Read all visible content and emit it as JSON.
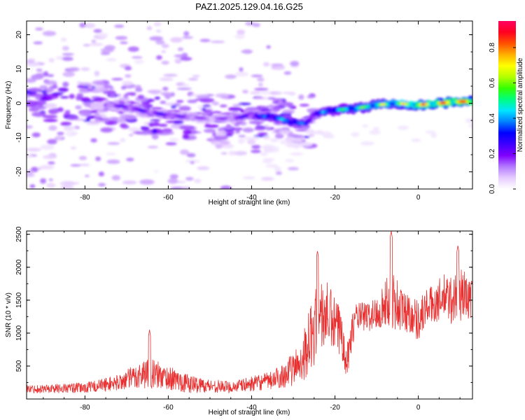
{
  "title": "PAZ1.2025.129.04.16.G25",
  "chart_data": [
    {
      "type": "heatmap",
      "xlabel": "Height of straight line (km)",
      "ylabel": "Frequency (Hz)",
      "xlim": [
        -94,
        13
      ],
      "ylim": [
        -25,
        24
      ],
      "xticks": [
        -80,
        -60,
        -40,
        -20,
        0
      ],
      "yticks": [
        -20,
        -10,
        0,
        10,
        20
      ],
      "colorbar": {
        "label": "Normalized spectral amplitude",
        "range": [
          0.0,
          0.95
        ],
        "ticks": [
          "0.0",
          "0.2",
          "0.4",
          "0.6",
          "0.8"
        ],
        "colormap": [
          "#ffffff",
          "#e6ccff",
          "#b37aff",
          "#8000ff",
          "#3f00ff",
          "#0000ff",
          "#0080ff",
          "#00e5ff",
          "#00ff80",
          "#33ff00",
          "#b3ff00",
          "#ffff00",
          "#ffb000",
          "#ff5000",
          "#ff0020",
          "#ff0060"
        ]
      },
      "ridge": {
        "x": [
          -75,
          -70,
          -65,
          -60,
          -55,
          -50,
          -45,
          -40,
          -35,
          -30,
          -27,
          -25,
          -20,
          -15,
          -10,
          -5,
          0,
          5,
          10,
          13
        ],
        "frequency": [
          -0.5,
          -1,
          -2.5,
          -3.5,
          -4,
          -4.5,
          -4.5,
          -3.5,
          -4,
          -5.5,
          -6,
          -3,
          -2,
          -1.5,
          -0.5,
          0,
          -0.5,
          0,
          0.5,
          0.5
        ],
        "amplitude": [
          0.2,
          0.25,
          0.25,
          0.25,
          0.2,
          0.15,
          0.2,
          0.3,
          0.45,
          0.45,
          0.35,
          0.35,
          0.5,
          0.6,
          0.65,
          0.7,
          0.8,
          0.85,
          0.9,
          0.9
        ]
      },
      "noise_region_x": [
        -94,
        -25
      ]
    },
    {
      "type": "line",
      "xlabel": "Height of straight line (km)",
      "ylabel": "SNR (10 * v/v)",
      "xlim": [
        -94,
        13
      ],
      "ylim": [
        0,
        2550
      ],
      "xticks": [
        -80,
        -60,
        -40,
        -20,
        0
      ],
      "yticks": [
        500,
        1000,
        1500,
        2000,
        2500
      ],
      "color": "#e83030",
      "envelope": {
        "x": [
          -94,
          -80,
          -72,
          -65,
          -60,
          -55,
          -50,
          -45,
          -40,
          -35,
          -30,
          -28,
          -26,
          -24,
          -22,
          -20,
          -18,
          -17,
          -16,
          -15,
          -12,
          -10,
          -8,
          -6,
          -4,
          -2,
          0,
          2,
          4,
          6,
          8,
          10,
          12,
          13
        ],
        "mean": [
          150,
          170,
          250,
          400,
          320,
          230,
          200,
          180,
          230,
          280,
          450,
          600,
          900,
          1200,
          1300,
          1100,
          950,
          600,
          1000,
          1250,
          1250,
          1300,
          1450,
          1500,
          1350,
          1300,
          1200,
          1400,
          1450,
          1550,
          1500,
          1600,
          1550,
          1400
        ],
        "spread": [
          60,
          80,
          120,
          240,
          180,
          140,
          100,
          90,
          110,
          140,
          250,
          350,
          500,
          600,
          500,
          450,
          400,
          350,
          250,
          220,
          230,
          260,
          340,
          500,
          350,
          300,
          320,
          280,
          300,
          350,
          380,
          420,
          350,
          250
        ]
      },
      "peaks": [
        {
          "x": -64.5,
          "y": 1050
        },
        {
          "x": -24.2,
          "y": 2250
        },
        {
          "x": -6.5,
          "y": 2550
        },
        {
          "x": 9.5,
          "y": 2330
        },
        {
          "x": 12.8,
          "y": 1800
        }
      ]
    }
  ]
}
